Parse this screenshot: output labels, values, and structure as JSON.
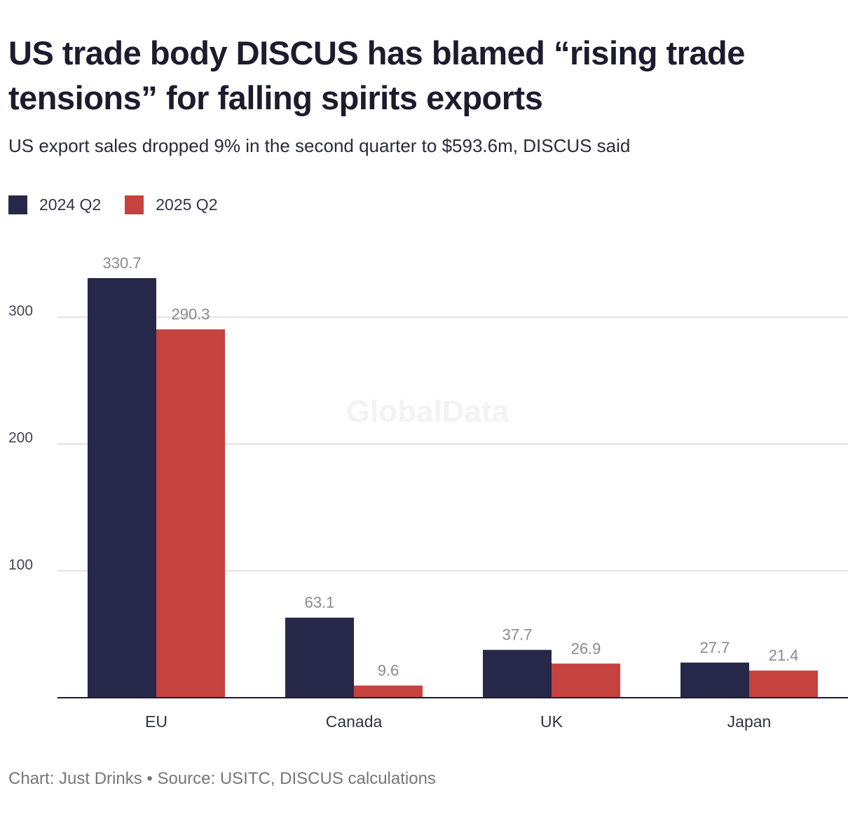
{
  "title": "US trade body DISCUS has blamed “rising trade tensions” for falling spirits exports",
  "subtitle": "US export sales dropped 9% in the second quarter to $593.6m, DISCUS said",
  "watermark": "GlobalData",
  "footer": "Chart: Just Drinks • Source: USITC, DISCUS calculations",
  "colors": {
    "series_2024": "#272849",
    "series_2025": "#c6423e",
    "grid": "#d9d9d9",
    "axis": "#1c1c2e"
  },
  "legend": [
    {
      "label": "2024 Q2",
      "color": "#272849"
    },
    {
      "label": "2025 Q2",
      "color": "#c6423e"
    }
  ],
  "chart_data": {
    "type": "bar",
    "title": "US trade body DISCUS has blamed “rising trade tensions” for falling spirits exports",
    "xlabel": "",
    "ylabel": "",
    "categories": [
      "EU",
      "Canada",
      "UK",
      "Japan"
    ],
    "series": [
      {
        "name": "2024 Q2",
        "color": "#272849",
        "values": [
          330.7,
          63.1,
          37.7,
          27.7
        ],
        "labels": [
          "330.7",
          "63.1",
          "37.7",
          "27.7"
        ]
      },
      {
        "name": "2025 Q2",
        "color": "#c6423e",
        "values": [
          290.3,
          9.6,
          26.9,
          21.4
        ],
        "labels": [
          "290.3",
          "9.6",
          "26.9",
          "21.4"
        ]
      }
    ],
    "ylim": [
      0,
      330.7
    ],
    "yticks": [
      100,
      200,
      300
    ],
    "ytick_labels": [
      "100",
      "200",
      "300"
    ],
    "grid": true,
    "legend_position": "top-left"
  }
}
